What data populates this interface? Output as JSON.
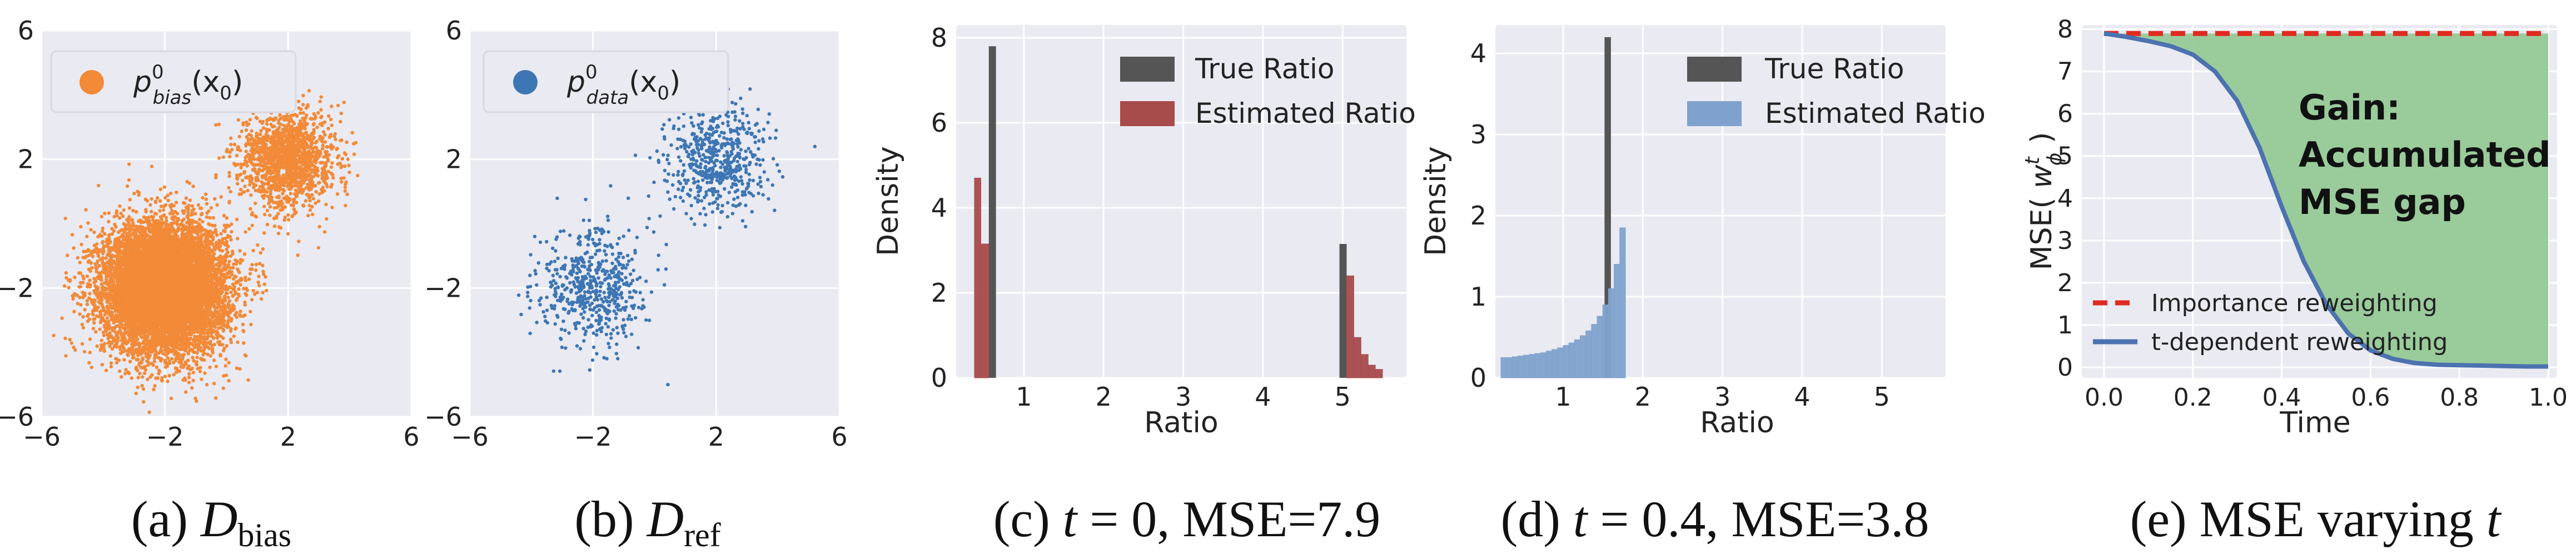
{
  "colors": {
    "panel_bg": "#EAEAF2",
    "grid": "#FFFFFF",
    "bias": "#F28A38",
    "ref": "#3D76B4",
    "true_ratio": "#555555",
    "est_red": "#A84B4B",
    "est_blue": "#7FA2CC",
    "imp_line": "#E02B20",
    "tdep_line": "#4C72B0",
    "gain_fill": "#96C996",
    "text": "#222222"
  },
  "chart_data": [
    {
      "panel": "a",
      "type": "scatter",
      "caption": {
        "prefix": "(a) ",
        "main": "D",
        "sub": "bias"
      },
      "legend": {
        "base": "p",
        "sup": "0",
        "sub": "bias",
        "arg": "(x",
        "arg_sub": "0",
        "close": ")"
      },
      "xlim": [
        -6,
        6
      ],
      "ylim": [
        -6,
        6
      ],
      "xticks": [
        -6,
        -2,
        2,
        6
      ],
      "yticks": [
        -6,
        -2,
        2,
        6
      ],
      "xtick_labels": [
        "−6",
        "−2",
        "2",
        "6"
      ],
      "ytick_labels": [
        "−6",
        "−2",
        "2",
        "6"
      ],
      "clusters": [
        {
          "center": [
            -2,
            -2
          ],
          "std": 1.0,
          "n": 9000
        },
        {
          "center": [
            2,
            2
          ],
          "std": 0.75,
          "n": 1500
        }
      ]
    },
    {
      "panel": "b",
      "type": "scatter",
      "caption": {
        "prefix": "(b) ",
        "main": "D",
        "sub": "ref"
      },
      "legend": {
        "base": "p",
        "sup": "0",
        "sub": "data",
        "arg": "(x",
        "arg_sub": "0",
        "close": ")"
      },
      "xlim": [
        -6,
        6
      ],
      "ylim": [
        -6,
        6
      ],
      "xticks": [
        -6,
        -2,
        2,
        6
      ],
      "yticks": [
        -6,
        -2,
        2,
        6
      ],
      "xtick_labels": [
        "−6",
        "−2",
        "2",
        "6"
      ],
      "ytick_labels": [
        "−6",
        "−2",
        "2",
        "6"
      ],
      "clusters": [
        {
          "center": [
            -2,
            -2
          ],
          "std": 0.9,
          "n": 550
        },
        {
          "center": [
            2,
            2
          ],
          "std": 0.85,
          "n": 550
        }
      ]
    },
    {
      "panel": "c",
      "type": "bar",
      "caption": {
        "prefix": "(c) ",
        "var": "t",
        "eq": " = 0, MSE=7.9"
      },
      "xlabel": "Ratio",
      "ylabel": "Density",
      "xlim": [
        0.15,
        5.8
      ],
      "ylim": [
        0,
        8.3
      ],
      "xticks": [
        1,
        2,
        3,
        4,
        5
      ],
      "yticks": [
        0,
        2,
        4,
        6,
        8
      ],
      "legend": [
        "True Ratio",
        "Estimated Ratio"
      ],
      "true_ratio": [
        {
          "x0": 0.56,
          "x1": 0.65,
          "h": 7.8
        },
        {
          "x0": 4.96,
          "x1": 5.05,
          "h": 3.15
        }
      ],
      "estimated_ratio": [
        {
          "x0": 0.38,
          "x1": 0.46,
          "h": 4.7
        },
        {
          "x0": 0.46,
          "x1": 0.56,
          "h": 3.15
        },
        {
          "x0": 5.05,
          "x1": 5.14,
          "h": 2.4
        },
        {
          "x0": 5.14,
          "x1": 5.23,
          "h": 0.95
        },
        {
          "x0": 5.23,
          "x1": 5.32,
          "h": 0.55
        },
        {
          "x0": 5.32,
          "x1": 5.41,
          "h": 0.3
        },
        {
          "x0": 5.41,
          "x1": 5.5,
          "h": 0.2
        }
      ]
    },
    {
      "panel": "d",
      "type": "bar",
      "caption": {
        "prefix": "(d) ",
        "var": "t",
        "eq": " = 0.4, MSE=3.8"
      },
      "xlabel": "Ratio",
      "ylabel": "Density",
      "xlim": [
        0.15,
        5.8
      ],
      "ylim": [
        0,
        4.35
      ],
      "xticks": [
        1,
        2,
        3,
        4,
        5
      ],
      "yticks": [
        0,
        1,
        2,
        3,
        4
      ],
      "legend": [
        "True Ratio",
        "Estimated Ratio"
      ],
      "true_ratio": [
        {
          "x0": 1.52,
          "x1": 1.6,
          "h": 4.2
        }
      ],
      "estimated_ratio_x0": 0.22,
      "estimated_ratio_width": 0.071,
      "estimated_ratio": [
        0.25,
        0.25,
        0.26,
        0.27,
        0.28,
        0.29,
        0.3,
        0.31,
        0.33,
        0.35,
        0.37,
        0.4,
        0.43,
        0.47,
        0.52,
        0.58,
        0.66,
        0.76,
        0.9,
        1.1,
        1.4,
        1.85
      ]
    },
    {
      "panel": "e",
      "type": "area",
      "caption": {
        "prefix": "(e) MSE varying ",
        "var": "t"
      },
      "xlabel": "Time",
      "ylabel": {
        "prefix": "MSE( ",
        "w": "w",
        "sup": "t",
        "sub": "ϕ",
        "close": " )"
      },
      "xlim": [
        -0.05,
        1.02
      ],
      "ylim": [
        -0.25,
        8.1
      ],
      "xticks": [
        0.0,
        0.2,
        0.4,
        0.6,
        0.8,
        1.0
      ],
      "yticks": [
        0,
        1,
        2,
        3,
        4,
        5,
        6,
        7,
        8
      ],
      "xtick_labels": [
        "0.0",
        "0.2",
        "0.4",
        "0.6",
        "0.8",
        "1.0"
      ],
      "annotation": [
        "Gain:",
        "Accumulated",
        "MSE gap"
      ],
      "series": [
        {
          "name": "Importance reweighting",
          "style": "dashed",
          "x": [
            0.0,
            1.0
          ],
          "y": [
            7.9,
            7.9
          ]
        },
        {
          "name": "t-dependent reweighting",
          "style": "solid",
          "x": [
            0.0,
            0.05,
            0.1,
            0.15,
            0.2,
            0.25,
            0.3,
            0.35,
            0.4,
            0.45,
            0.5,
            0.55,
            0.6,
            0.65,
            0.7,
            0.75,
            0.8,
            0.85,
            0.9,
            0.95,
            1.0
          ],
          "y": [
            7.9,
            7.82,
            7.72,
            7.6,
            7.4,
            7.0,
            6.3,
            5.2,
            3.8,
            2.5,
            1.5,
            0.8,
            0.4,
            0.2,
            0.1,
            0.06,
            0.05,
            0.04,
            0.03,
            0.02,
            0.02
          ]
        }
      ]
    }
  ]
}
